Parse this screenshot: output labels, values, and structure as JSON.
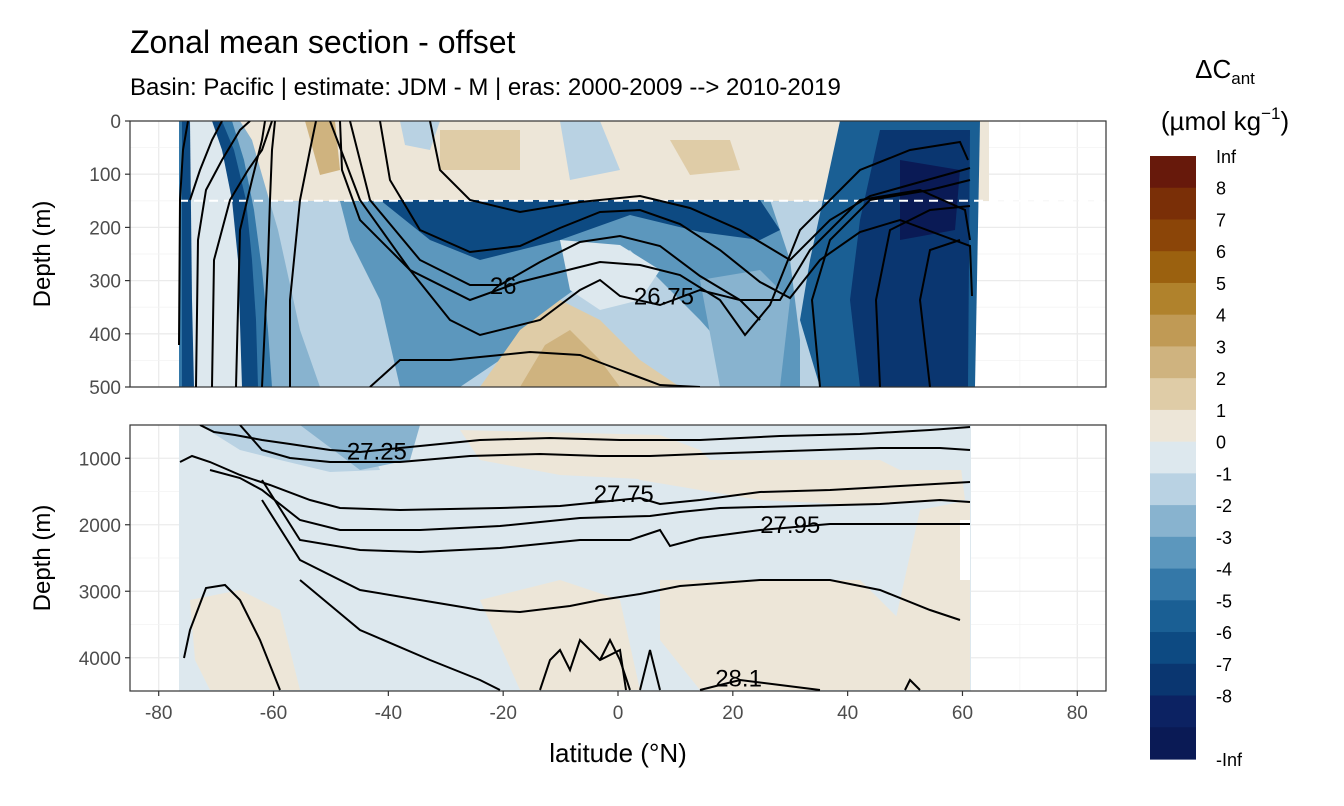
{
  "title": "Zonal mean section - offset",
  "subtitle": "Basin: Pacific | estimate: JDM - M | eras: 2000-2009 --> 2010-2019",
  "chart_data": {
    "type": "heatmap",
    "title": "Zonal mean section - offset",
    "subtitle": "Basin: Pacific | estimate: JDM - M | eras: 2000-2009 --> 2010-2019",
    "xlabel": "latitude (°N)",
    "ylabel": "Depth (m)",
    "xlim": [
      -85,
      85
    ],
    "x_ticks": [
      "-80",
      "-60",
      "-40",
      "-20",
      "0",
      "20",
      "40",
      "60",
      "80"
    ],
    "panels": [
      {
        "ylim": [
          0,
          500
        ],
        "y_ticks": [
          "0",
          "100",
          "200",
          "300",
          "400",
          "500"
        ],
        "reference_depth": 150
      },
      {
        "ylim": [
          500,
          4500
        ],
        "y_ticks": [
          "1000",
          "2000",
          "3000",
          "4000"
        ]
      }
    ],
    "legend": {
      "title_main": "ΔC",
      "title_sub": "ant",
      "unit_main": "(µmol kg",
      "unit_sup": "−1",
      "unit_end": ")",
      "placement": "right",
      "labels": [
        "Inf",
        "8",
        "7",
        "6",
        "5",
        "4",
        "3",
        "2",
        "1",
        "0",
        "-1",
        "-2",
        "-3",
        "-4",
        "-5",
        "-6",
        "-7",
        "-8",
        "-Inf"
      ],
      "colors": [
        "#67190b",
        "#7a2f07",
        "#8b4508",
        "#9b610f",
        "#b0822c",
        "#c09a55",
        "#cfb37f",
        "#dfcca7",
        "#ede6d8",
        "#dde8ee",
        "#b9d2e3",
        "#88b3cf",
        "#5c97bd",
        "#3478a8",
        "#1a5f94",
        "#0d4a82",
        "#0a3670",
        "#0c2262",
        "#0a1a55"
      ]
    },
    "contours": [
      {
        "label": "26",
        "lat": -20,
        "depth": 310
      },
      {
        "label": "26.75",
        "lat": 8,
        "depth": 330
      },
      {
        "label": "27.25",
        "lat": -42,
        "depth": 900
      },
      {
        "label": "27.75",
        "lat": 1,
        "depth": 1540
      },
      {
        "label": "27.95",
        "lat": 30,
        "depth": 2000
      },
      {
        "label": "28.1",
        "lat": 21,
        "depth": 4310
      }
    ]
  }
}
